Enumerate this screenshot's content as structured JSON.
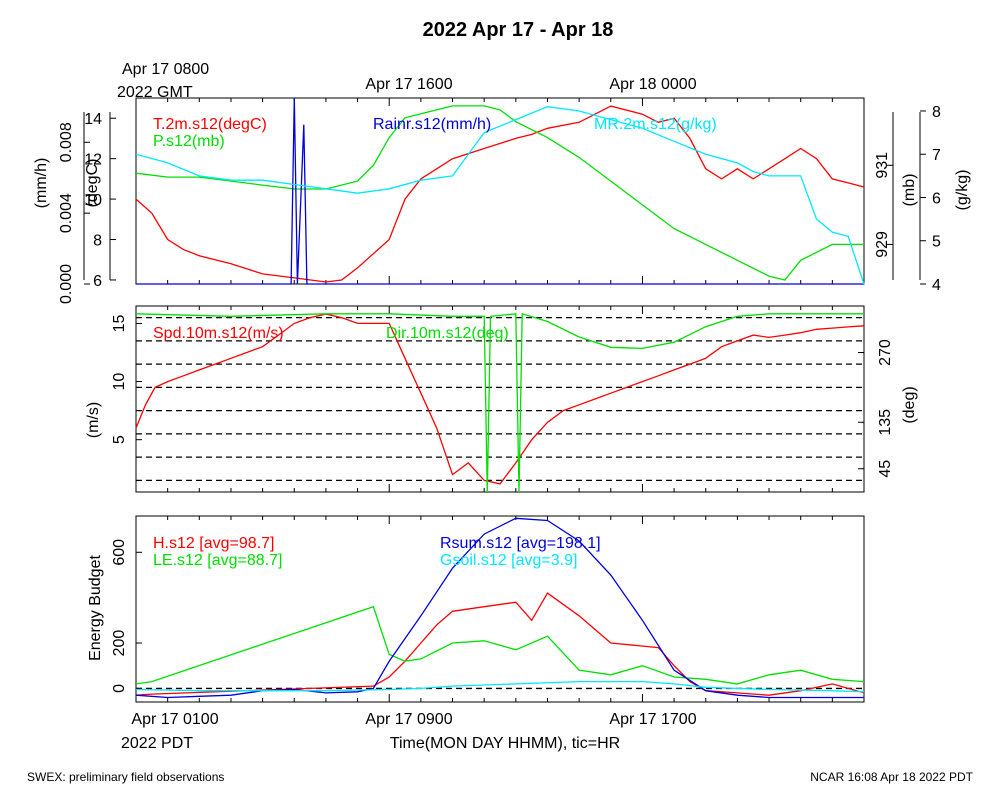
{
  "title": "2022 Apr 17 - Apr 18",
  "top_axis": {
    "labels": [
      "Apr 17 0800",
      "Apr 17 1600",
      "Apr 18 0000"
    ],
    "sublabel": "2022 GMT"
  },
  "bottom_axis": {
    "labels": [
      "Apr 17 0100",
      "Apr 17 0900",
      "Apr 17 1700"
    ],
    "sublabel": "2022 PDT",
    "title": "Time(MON DAY HHMM), tic=HR"
  },
  "footer": {
    "left": "SWEX: preliminary field observations",
    "right": "NCAR 16:08 Apr 18 2022 PDT"
  },
  "colors": {
    "red": "#ff0000",
    "green": "#00e000",
    "blue": "#0000dd",
    "cyan": "#00e8ff"
  },
  "chart_data": [
    {
      "type": "line",
      "panel": "meteorology",
      "x_unit": "hours since Apr 17 0100 PDT",
      "xlim": [
        0,
        23
      ],
      "left_axes": [
        {
          "label": "(degC)",
          "ticks": [
            "6",
            "8",
            "10",
            "12",
            "14"
          ],
          "ylim": [
            5.8,
            15.0
          ]
        },
        {
          "label": "(mm/h)",
          "ticks": [
            "0.000",
            "0.004",
            "0.008"
          ],
          "ylim": [
            0,
            0.0105
          ]
        }
      ],
      "right_axes": [
        {
          "label": "(mb)",
          "ticks": [
            "929",
            "931"
          ],
          "ylim": [
            928.0,
            932.7
          ]
        },
        {
          "label": "(g/kg)",
          "ticks": [
            "4",
            "5",
            "6",
            "7",
            "8"
          ],
          "ylim": [
            4,
            8.3
          ]
        }
      ],
      "legend": [
        "T.2m.s12(degC)",
        "P.s12(mb)",
        "Rainr.s12(mm/h)",
        "MR.2m.s12(g/kg)"
      ],
      "series": [
        {
          "name": "T.2m.s12(degC)",
          "color": "red",
          "axis": "degC",
          "x": [
            0,
            0.5,
            1,
            1.5,
            2,
            3,
            4,
            5,
            6,
            6.5,
            7,
            8,
            8.5,
            9,
            9.5,
            10,
            11,
            12,
            12.5,
            13,
            14,
            14.5,
            15,
            16,
            16.5,
            17,
            17.5,
            18,
            18.5,
            19,
            19.5,
            20,
            20.5,
            21,
            21.5,
            22,
            22.5,
            23
          ],
          "y": [
            10.0,
            9.3,
            8.0,
            7.5,
            7.2,
            6.8,
            6.3,
            6.1,
            5.9,
            6.0,
            6.6,
            8.0,
            10.0,
            11.0,
            11.5,
            12.0,
            12.5,
            13.0,
            13.2,
            13.5,
            13.8,
            14.2,
            14.6,
            14.2,
            13.8,
            14.0,
            13.0,
            11.5,
            11.0,
            11.5,
            11.0,
            11.5,
            12.0,
            12.5,
            12.0,
            11.0,
            10.8,
            10.6
          ]
        },
        {
          "name": "P.s12(mb)",
          "color": "green",
          "axis": "mb",
          "x": [
            0,
            1,
            2,
            3,
            4,
            5,
            6,
            7,
            7.5,
            8,
            8.5,
            9,
            10,
            11,
            11.5,
            12,
            13,
            14,
            15,
            16,
            17,
            18,
            19,
            20,
            20.5,
            21,
            22,
            23
          ],
          "y": [
            930.8,
            930.7,
            930.7,
            930.6,
            930.5,
            930.4,
            930.4,
            930.6,
            931.0,
            931.7,
            932.2,
            932.3,
            932.5,
            932.5,
            932.4,
            932.1,
            931.7,
            931.2,
            930.6,
            930.0,
            929.4,
            929.0,
            928.6,
            928.2,
            928.1,
            928.6,
            929.0,
            929.0
          ]
        },
        {
          "name": "Rainr.s12(mm/h)",
          "color": "blue",
          "axis": "mm/h",
          "x": [
            0,
            4.9,
            5.0,
            5.1,
            5.3,
            5.4,
            5.5,
            23
          ],
          "y": [
            0,
            0,
            0.0105,
            0,
            0.009,
            0,
            0,
            0
          ]
        },
        {
          "name": "MR.2m.s12(g/kg)",
          "color": "cyan",
          "axis": "g/kg",
          "x": [
            0,
            1,
            2,
            3,
            4,
            5,
            6,
            7,
            8,
            9,
            10,
            10.5,
            11,
            12,
            13,
            14,
            15,
            16,
            17,
            18,
            19,
            19.5,
            20,
            21,
            21.5,
            22,
            22.5,
            23
          ],
          "y": [
            7.0,
            6.8,
            6.5,
            6.4,
            6.4,
            6.3,
            6.2,
            6.1,
            6.2,
            6.4,
            6.5,
            7.0,
            7.5,
            7.8,
            8.1,
            8.0,
            7.8,
            7.6,
            7.3,
            7.0,
            6.8,
            6.6,
            6.5,
            6.5,
            5.5,
            5.2,
            5.1,
            4.0
          ]
        }
      ]
    },
    {
      "type": "line",
      "panel": "wind",
      "x_unit": "hours since Apr 17 0100 PDT",
      "xlim": [
        0,
        23
      ],
      "left_axis": {
        "label": "(m/s)",
        "ticks": [
          "5",
          "10",
          "15"
        ],
        "ylim": [
          0.5,
          16.5
        ]
      },
      "right_axis": {
        "label": "(deg)",
        "ticks": [
          "45",
          "135",
          "270"
        ],
        "ylim": [
          0,
          360
        ]
      },
      "reference_lines_deg": [
        22.5,
        67.5,
        112.5,
        157.5,
        202.5,
        247.5,
        292.5,
        337.5
      ],
      "legend": [
        "Spd.10m.s12(m/s)",
        "Dir.10m.s12(deg)"
      ],
      "series": [
        {
          "name": "Spd.10m.s12(m/s)",
          "color": "red",
          "axis": "m/s",
          "x": [
            0,
            0.3,
            0.6,
            1,
            1.5,
            2,
            2.5,
            3,
            3.5,
            4,
            4.5,
            5,
            5.5,
            6,
            6.5,
            7,
            7.5,
            8,
            8.5,
            9,
            9.5,
            10,
            10.5,
            11,
            11.5,
            12,
            12.5,
            13,
            13.5,
            14,
            14.5,
            15,
            15.5,
            16,
            16.5,
            17,
            17.5,
            18,
            18.5,
            19,
            19.5,
            20,
            20.5,
            21,
            21.5,
            22,
            22.5,
            23
          ],
          "y": [
            6,
            8,
            9.5,
            10,
            10.5,
            11,
            11.5,
            12,
            12.5,
            13,
            14,
            15,
            15.5,
            15.8,
            15.5,
            15,
            15,
            15,
            12,
            9,
            6,
            2,
            3,
            1.5,
            1.2,
            3,
            5,
            6.5,
            7.5,
            8,
            8.5,
            9,
            9.5,
            10,
            10.5,
            11,
            11.5,
            12,
            13,
            13.5,
            14,
            13.8,
            14,
            14.2,
            14.5,
            14.6,
            14.7,
            14.8
          ]
        },
        {
          "name": "Dir.10m.s12(deg)",
          "color": "green",
          "axis": "deg",
          "x": [
            0,
            3,
            6,
            8,
            10,
            11,
            11.1,
            11.2,
            12,
            12.1,
            12.2,
            13,
            14,
            15,
            16,
            17,
            18,
            19,
            20,
            21,
            22,
            23
          ],
          "y": [
            345,
            340,
            345,
            345,
            340,
            340,
            0,
            340,
            345,
            0,
            345,
            330,
            300,
            280,
            278,
            290,
            320,
            340,
            345,
            345,
            345,
            345
          ]
        }
      ]
    },
    {
      "type": "line",
      "panel": "energy",
      "x_unit": "hours since Apr 17 0100 PDT",
      "xlim": [
        0,
        23
      ],
      "axis": {
        "label": "Energy Budget",
        "ticks": [
          "0",
          "200",
          "600"
        ],
        "ylim": [
          -60,
          760
        ]
      },
      "reference_lines": [
        0
      ],
      "legend": [
        "H.s12 [avg=98.7]",
        "LE.s12 [avg=88.7]",
        "Rsum.s12 [avg=198.1]",
        "Gsoil.s12 [avg=3.9]"
      ],
      "series": [
        {
          "name": "H.s12 [avg=98.7]",
          "color": "red",
          "x": [
            0,
            0.5,
            7.5,
            8,
            8.5,
            9,
            9.5,
            10,
            11,
            12,
            12.5,
            13,
            14,
            15,
            16.5,
            17,
            17.5,
            18,
            19,
            20,
            21,
            22,
            23
          ],
          "y": [
            -30,
            -25,
            10,
            50,
            120,
            200,
            280,
            340,
            360,
            380,
            300,
            420,
            320,
            200,
            180,
            100,
            30,
            -10,
            -20,
            -30,
            -10,
            20,
            -20
          ]
        },
        {
          "name": "LE.s12 [avg=88.7]",
          "color": "green",
          "x": [
            0,
            0.5,
            7.5,
            8,
            8.5,
            9,
            10,
            11,
            12,
            13,
            14,
            15,
            16,
            17,
            18,
            19,
            20,
            21,
            22,
            23
          ],
          "y": [
            20,
            30,
            360,
            150,
            120,
            130,
            200,
            210,
            170,
            230,
            80,
            60,
            100,
            50,
            40,
            20,
            60,
            80,
            40,
            30
          ]
        },
        {
          "name": "Rsum.s12 [avg=198.1]",
          "color": "blue",
          "x": [
            0,
            1,
            2,
            3,
            4,
            5,
            6,
            7,
            7.5,
            8,
            9,
            10,
            11,
            12,
            13,
            14,
            15,
            16,
            17,
            18,
            19,
            20,
            21,
            22,
            23
          ],
          "y": [
            -30,
            -40,
            -35,
            -30,
            -10,
            -5,
            -20,
            -15,
            0,
            120,
            320,
            530,
            680,
            750,
            740,
            650,
            500,
            300,
            80,
            -10,
            -30,
            -40,
            -40,
            -40,
            -40
          ]
        },
        {
          "name": "Gsoil.s12 [avg=3.9]",
          "color": "cyan",
          "x": [
            0,
            2,
            4,
            6,
            8,
            9,
            10,
            12,
            14,
            16,
            17,
            18,
            20,
            22,
            23
          ],
          "y": [
            -5,
            -10,
            -10,
            -10,
            -5,
            0,
            10,
            20,
            30,
            30,
            20,
            5,
            -5,
            -10,
            -15
          ]
        }
      ]
    }
  ]
}
